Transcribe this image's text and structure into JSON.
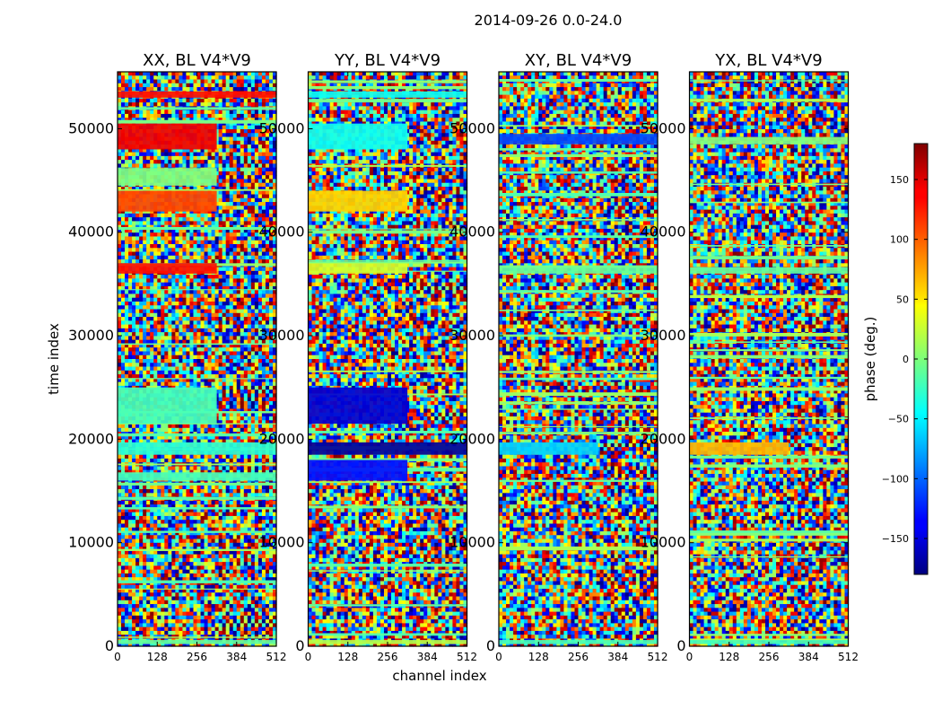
{
  "chart_data": {
    "type": "heatmap",
    "suptitle": "2014-09-26 0.0-24.0",
    "xlabel": "channel index",
    "ylabel": "time index",
    "xlim": [
      0,
      512
    ],
    "ylim": [
      0,
      55500
    ],
    "xticks": [
      0,
      128,
      256,
      384,
      512
    ],
    "yticks": [
      0,
      10000,
      20000,
      30000,
      40000,
      50000
    ],
    "colorbar": {
      "label": "phase (deg.)",
      "range": [
        -180,
        180
      ],
      "ticks": [
        -150,
        -100,
        -50,
        0,
        50,
        100,
        150
      ],
      "tick_labels": [
        "−150",
        "−100",
        "−50",
        "0",
        "50",
        "100",
        "150"
      ],
      "colormap": "jet"
    },
    "panels": [
      {
        "title": "XX, BL V4*V9",
        "bands": [
          {
            "y0": 48000,
            "y1": 50500,
            "x0": 0,
            "x1": 320,
            "phase": 140
          },
          {
            "y0": 44500,
            "y1": 46200,
            "x0": 0,
            "x1": 320,
            "phase": 0
          },
          {
            "y0": 42000,
            "y1": 44000,
            "x0": 0,
            "x1": 320,
            "phase": 110
          },
          {
            "y0": 36000,
            "y1": 37000,
            "x0": 0,
            "x1": 320,
            "phase": 130
          },
          {
            "y0": 21500,
            "y1": 25000,
            "x0": 0,
            "x1": 320,
            "phase": -20
          },
          {
            "y0": 18500,
            "y1": 19700,
            "x0": 0,
            "x1": 512,
            "phase": -30
          },
          {
            "y0": 16000,
            "y1": 16800,
            "x0": 0,
            "x1": 512,
            "phase": -20
          },
          {
            "y0": 53000,
            "y1": 53600,
            "x0": 0,
            "x1": 512,
            "phase": 130
          },
          {
            "y0": 200,
            "y1": 600,
            "x0": 0,
            "x1": 512,
            "phase": -10
          }
        ]
      },
      {
        "title": "YY, BL V4*V9",
        "bands": [
          {
            "y0": 48000,
            "y1": 50500,
            "x0": 0,
            "x1": 320,
            "phase": -40
          },
          {
            "y0": 42000,
            "y1": 44000,
            "x0": 0,
            "x1": 320,
            "phase": 60
          },
          {
            "y0": 36000,
            "y1": 37000,
            "x0": 0,
            "x1": 320,
            "phase": 30
          },
          {
            "y0": 21500,
            "y1": 25000,
            "x0": 0,
            "x1": 320,
            "phase": -150
          },
          {
            "y0": 18500,
            "y1": 19700,
            "x0": 0,
            "x1": 512,
            "phase": -170
          },
          {
            "y0": 16000,
            "y1": 18000,
            "x0": 0,
            "x1": 320,
            "phase": -130
          },
          {
            "y0": 53000,
            "y1": 53600,
            "x0": 0,
            "x1": 512,
            "phase": -40
          },
          {
            "y0": 200,
            "y1": 600,
            "x0": 0,
            "x1": 512,
            "phase": 20
          }
        ]
      },
      {
        "title": "XY, BL V4*V9",
        "bands": [
          {
            "y0": 48500,
            "y1": 49500,
            "x0": 0,
            "x1": 512,
            "phase": -110
          },
          {
            "y0": 18500,
            "y1": 19700,
            "x0": 0,
            "x1": 320,
            "phase": -60
          },
          {
            "y0": 36000,
            "y1": 36600,
            "x0": 0,
            "x1": 512,
            "phase": -10
          },
          {
            "y0": 200,
            "y1": 600,
            "x0": 0,
            "x1": 512,
            "phase": -20
          }
        ]
      },
      {
        "title": "YX, BL V4*V9",
        "bands": [
          {
            "y0": 18500,
            "y1": 19700,
            "x0": 0,
            "x1": 320,
            "phase": 70
          },
          {
            "y0": 36000,
            "y1": 36600,
            "x0": 0,
            "x1": 512,
            "phase": -10
          },
          {
            "y0": 48500,
            "y1": 49200,
            "x0": 0,
            "x1": 512,
            "phase": 0
          },
          {
            "y0": 200,
            "y1": 600,
            "x0": 0,
            "x1": 512,
            "phase": -20
          }
        ]
      }
    ]
  }
}
